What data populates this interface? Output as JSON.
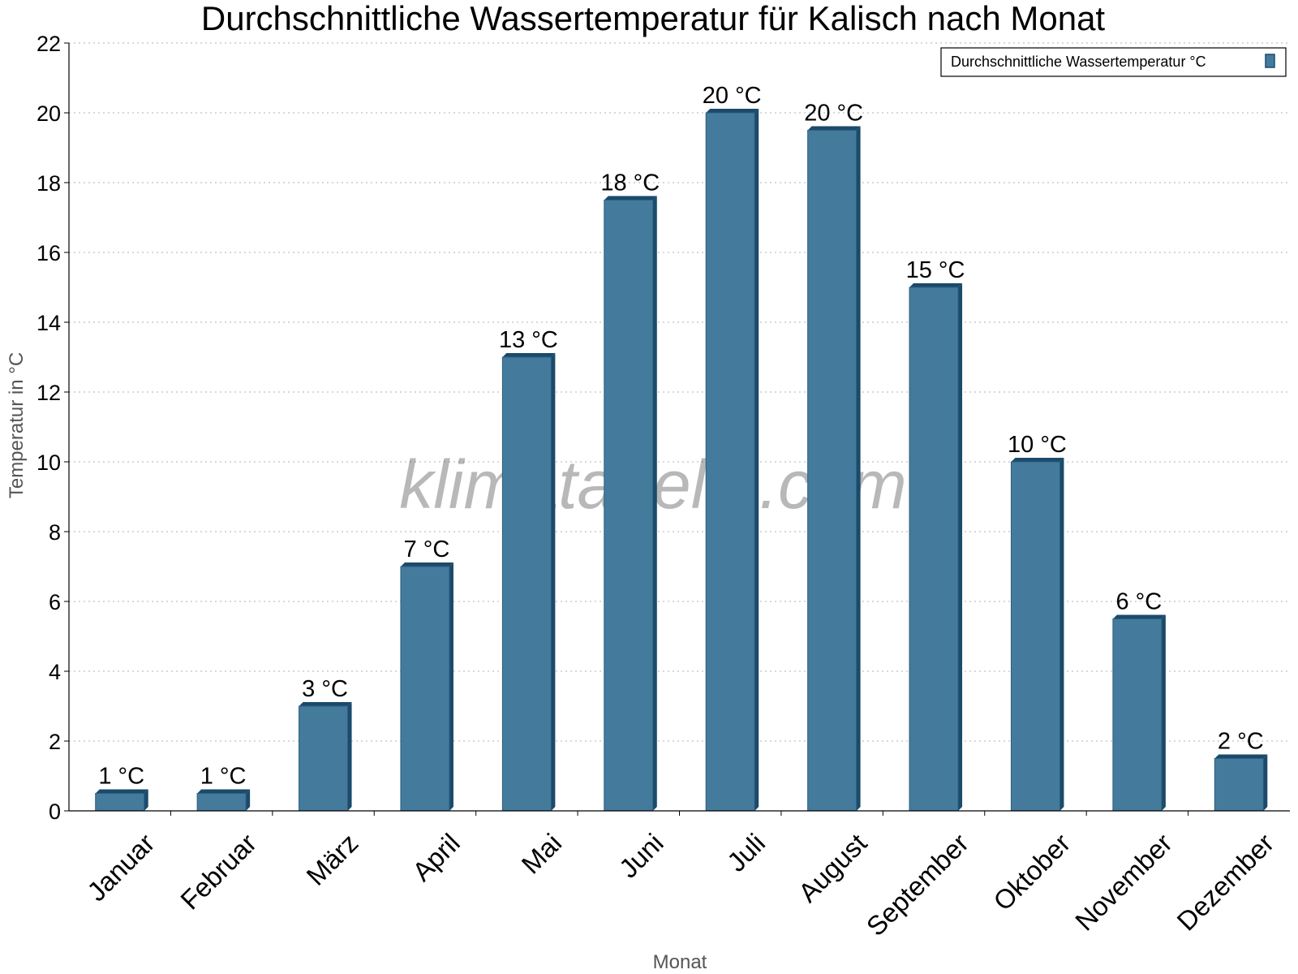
{
  "watermark": "klimatabelle.com",
  "chart_data": {
    "type": "bar",
    "title": "Durchschnittliche Wassertemperatur für Kalisch nach Monat",
    "xlabel": "Monat",
    "ylabel": "Temperatur in °C",
    "ylim": [
      0,
      22
    ],
    "yticks": [
      "0",
      "2",
      "4",
      "6",
      "8",
      "10",
      "12",
      "14",
      "16",
      "18",
      "20",
      "22"
    ],
    "grid": true,
    "legend_position": "top-right",
    "categories": [
      "Januar",
      "Februar",
      "März",
      "April",
      "Mai",
      "Juni",
      "Juli",
      "August",
      "September",
      "Oktober",
      "November",
      "Dezember"
    ],
    "series": [
      {
        "name": "Durchschnittliche Wassertemperatur °C",
        "color": "#447b9c",
        "values": [
          0.5,
          0.5,
          3,
          7,
          13,
          17.5,
          20,
          19.5,
          15,
          10,
          5.5,
          1.5
        ],
        "labels": [
          "1 °C",
          "1 °C",
          "3 °C",
          "7 °C",
          "13 °C",
          "18 °C",
          "20 °C",
          "20 °C",
          "15 °C",
          "10 °C",
          "6 °C",
          "2 °C"
        ]
      }
    ]
  }
}
